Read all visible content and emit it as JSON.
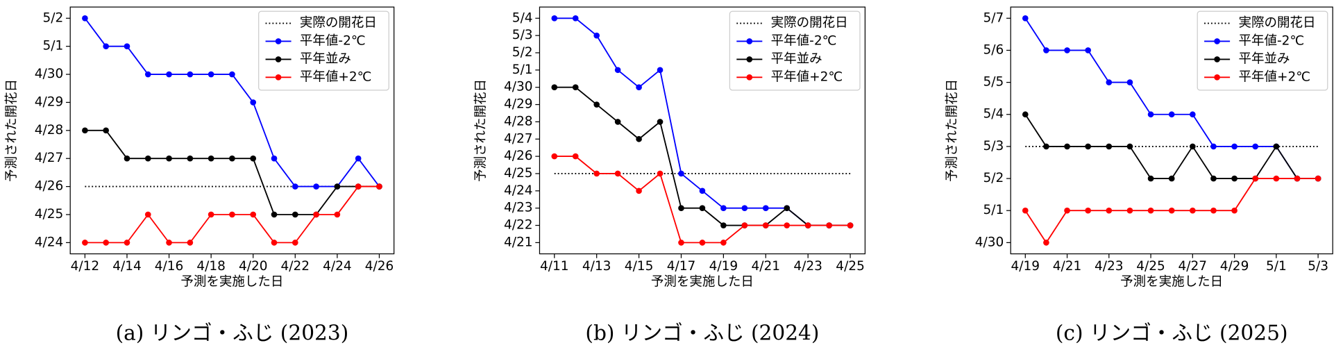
{
  "chart_data": [
    {
      "type": "line",
      "caption": "(a) リンゴ・ふじ (2023)",
      "x_label": "予測を実施した日",
      "y_label": "予測された開花日",
      "x": [
        "4/12",
        "4/13",
        "4/14",
        "4/15",
        "4/16",
        "4/17",
        "4/18",
        "4/19",
        "4/20",
        "4/21",
        "4/22",
        "4/23",
        "4/24",
        "4/25",
        "4/26"
      ],
      "xlim": [
        "4/12",
        "4/26"
      ],
      "xticks": [
        "4/12",
        "4/14",
        "4/16",
        "4/18",
        "4/20",
        "4/22",
        "4/24",
        "4/26"
      ],
      "ylim": [
        "4/24",
        "5/2"
      ],
      "yticks": [
        "4/24",
        "4/25",
        "4/26",
        "4/27",
        "4/28",
        "4/29",
        "4/30",
        "5/1",
        "5/2"
      ],
      "reference_line": {
        "name": "実際の開花日",
        "value": "4/26",
        "color": "#000000"
      },
      "legend": "upper right",
      "series": [
        {
          "name": "平年値-2℃",
          "color": "#0000ff",
          "values": [
            "5/2",
            "5/1",
            "5/1",
            "4/30",
            "4/30",
            "4/30",
            "4/30",
            "4/30",
            "4/29",
            "4/27",
            "4/26",
            "4/26",
            "4/26",
            "4/27",
            "4/26"
          ]
        },
        {
          "name": "平年並み",
          "color": "#000000",
          "values": [
            "4/28",
            "4/28",
            "4/27",
            "4/27",
            "4/27",
            "4/27",
            "4/27",
            "4/27",
            "4/27",
            "4/25",
            "4/25",
            "4/25",
            "4/26",
            "4/26",
            "4/26"
          ]
        },
        {
          "name": "平年値+2℃",
          "color": "#ff0000",
          "values": [
            "4/24",
            "4/24",
            "4/24",
            "4/25",
            "4/24",
            "4/24",
            "4/25",
            "4/25",
            "4/25",
            "4/24",
            "4/24",
            "4/25",
            "4/25",
            "4/26",
            "4/26"
          ]
        }
      ]
    },
    {
      "type": "line",
      "caption": "(b) リンゴ・ふじ (2024)",
      "x_label": "予測を実施した日",
      "y_label": "予測された開花日",
      "x": [
        "4/11",
        "4/12",
        "4/13",
        "4/14",
        "4/15",
        "4/16",
        "4/17",
        "4/18",
        "4/19",
        "4/20",
        "4/21",
        "4/22",
        "4/23",
        "4/24",
        "4/25"
      ],
      "xlim": [
        "4/11",
        "4/25"
      ],
      "xticks": [
        "4/11",
        "4/13",
        "4/15",
        "4/17",
        "4/19",
        "4/21",
        "4/23",
        "4/25"
      ],
      "ylim": [
        "4/21",
        "5/4"
      ],
      "yticks": [
        "4/21",
        "4/22",
        "4/23",
        "4/24",
        "4/25",
        "4/26",
        "4/27",
        "4/28",
        "4/29",
        "4/30",
        "5/1",
        "5/2",
        "5/3",
        "5/4"
      ],
      "reference_line": {
        "name": "実際の開花日",
        "value": "4/25",
        "color": "#000000"
      },
      "legend": "upper right",
      "series": [
        {
          "name": "平年値-2℃",
          "color": "#0000ff",
          "values": [
            "5/4",
            "5/4",
            "5/3",
            "5/1",
            "4/30",
            "5/1",
            "4/25",
            "4/24",
            "4/23",
            "4/23",
            "4/23",
            "4/23",
            "4/22",
            "4/22",
            "4/22"
          ]
        },
        {
          "name": "平年並み",
          "color": "#000000",
          "values": [
            "4/30",
            "4/30",
            "4/29",
            "4/28",
            "4/27",
            "4/28",
            "4/23",
            "4/23",
            "4/22",
            "4/22",
            "4/22",
            "4/23",
            "4/22",
            "4/22",
            "4/22"
          ]
        },
        {
          "name": "平年値+2℃",
          "color": "#ff0000",
          "values": [
            "4/26",
            "4/26",
            "4/25",
            "4/25",
            "4/24",
            "4/25",
            "4/21",
            "4/21",
            "4/21",
            "4/22",
            "4/22",
            "4/22",
            "4/22",
            "4/22",
            "4/22"
          ]
        }
      ]
    },
    {
      "type": "line",
      "caption": "(c) リンゴ・ふじ (2025)",
      "x_label": "予測を実施した日",
      "y_label": "予測された開花日",
      "x": [
        "4/19",
        "4/20",
        "4/21",
        "4/22",
        "4/23",
        "4/24",
        "4/25",
        "4/26",
        "4/27",
        "4/28",
        "4/29",
        "4/30",
        "5/1",
        "5/2",
        "5/3"
      ],
      "xlim": [
        "4/19",
        "5/3"
      ],
      "xticks": [
        "4/19",
        "4/21",
        "4/23",
        "4/25",
        "4/27",
        "4/29",
        "5/1",
        "5/3"
      ],
      "ylim": [
        "4/30",
        "5/7"
      ],
      "yticks": [
        "4/30",
        "5/1",
        "5/2",
        "5/3",
        "5/4",
        "5/5",
        "5/6",
        "5/7"
      ],
      "reference_line": {
        "name": "実際の開花日",
        "value": "5/3",
        "color": "#000000"
      },
      "legend": "upper right",
      "series": [
        {
          "name": "平年値-2℃",
          "color": "#0000ff",
          "values": [
            "5/7",
            "5/6",
            "5/6",
            "5/6",
            "5/5",
            "5/5",
            "5/4",
            "5/4",
            "5/4",
            "5/3",
            "5/3",
            "5/3",
            "5/3",
            "5/2",
            "5/2"
          ]
        },
        {
          "name": "平年並み",
          "color": "#000000",
          "values": [
            "5/4",
            "5/3",
            "5/3",
            "5/3",
            "5/3",
            "5/3",
            "5/2",
            "5/2",
            "5/3",
            "5/2",
            "5/2",
            "5/2",
            "5/3",
            "5/2",
            "5/2"
          ]
        },
        {
          "name": "平年値+2℃",
          "color": "#ff0000",
          "values": [
            "5/1",
            "4/30",
            "5/1",
            "5/1",
            "5/1",
            "5/1",
            "5/1",
            "5/1",
            "5/1",
            "5/1",
            "5/1",
            "5/2",
            "5/2",
            "5/2",
            "5/2"
          ]
        }
      ]
    }
  ]
}
